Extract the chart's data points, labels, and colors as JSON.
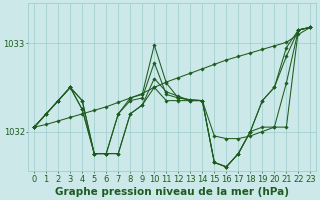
{
  "bg_color": "#cce8e8",
  "line_color": "#1e5c1e",
  "grid_color": "#9ecece",
  "xlabel": "Graphe pression niveau de la mer (hPa)",
  "yticks": [
    1032,
    1033
  ],
  "xlim": [
    -0.5,
    23.5
  ],
  "ylim": [
    1031.55,
    1033.45
  ],
  "s1": [
    1032.05,
    1032.08,
    1032.12,
    1032.16,
    1032.2,
    1032.24,
    1032.28,
    1032.33,
    1032.38,
    1032.43,
    1032.5,
    1032.56,
    1032.61,
    1032.66,
    1032.71,
    1032.76,
    1032.81,
    1032.85,
    1032.89,
    1032.93,
    1032.97,
    1033.01,
    1033.1,
    1033.18
  ],
  "s2": [
    1032.05,
    1032.2,
    1032.35,
    1032.5,
    1032.35,
    1031.75,
    1031.75,
    1031.75,
    1032.2,
    1032.3,
    1032.6,
    1032.45,
    1032.4,
    1032.35,
    1032.35,
    1031.95,
    1031.92,
    1031.92,
    1031.95,
    1032.0,
    1032.05,
    1032.55,
    1033.15,
    1033.18
  ],
  "s3": [
    1032.05,
    1032.2,
    1032.35,
    1032.5,
    1032.35,
    1031.75,
    1031.75,
    1031.75,
    1032.2,
    1032.3,
    1032.5,
    1032.35,
    1032.35,
    1032.35,
    1032.35,
    1031.65,
    1031.6,
    1031.75,
    1032.0,
    1032.05,
    1032.05,
    1032.05,
    1033.15,
    1033.18
  ],
  "s4": [
    1032.05,
    1032.2,
    1032.35,
    1032.5,
    1032.25,
    1031.75,
    1031.75,
    1032.2,
    1032.35,
    1032.38,
    1032.78,
    1032.42,
    1032.38,
    1032.36,
    1032.35,
    1031.65,
    1031.6,
    1031.75,
    1032.0,
    1032.35,
    1032.5,
    1032.85,
    1033.15,
    1033.18
  ],
  "s5": [
    1032.05,
    1032.2,
    1032.35,
    1032.5,
    1032.25,
    1031.75,
    1031.75,
    1032.2,
    1032.38,
    1032.42,
    1032.98,
    1032.55,
    1032.38,
    1032.36,
    1032.35,
    1031.65,
    1031.6,
    1031.75,
    1032.0,
    1032.35,
    1032.5,
    1032.95,
    1033.15,
    1033.18
  ],
  "lw": 0.75,
  "ms": 1.8,
  "title_fontsize": 7.5,
  "tick_fontsize": 6.0
}
